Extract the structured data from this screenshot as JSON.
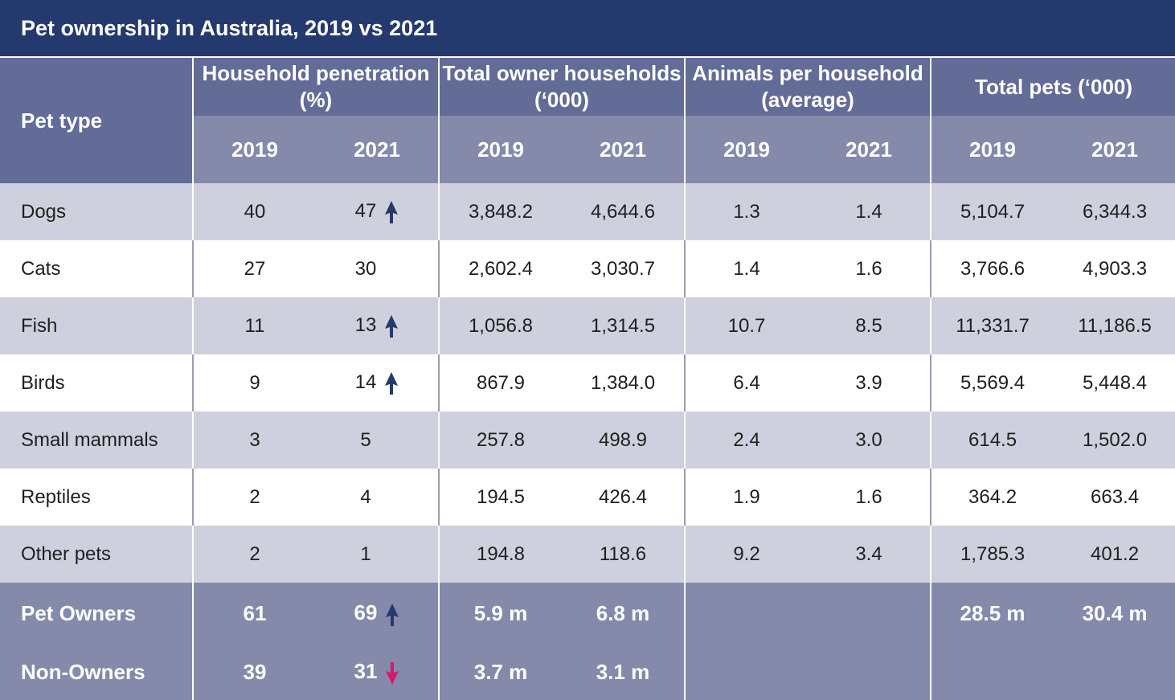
{
  "chart_data": {
    "type": "table",
    "title": "Pet ownership in Australia, 2019 vs 2021",
    "row_header": "Pet type",
    "groups": [
      {
        "label": "Household penetration (%)",
        "years": [
          "2019",
          "2021"
        ]
      },
      {
        "label": "Total owner households (‘000)",
        "years": [
          "2019",
          "2021"
        ]
      },
      {
        "label": "Animals per household (average)",
        "years": [
          "2019",
          "2021"
        ]
      },
      {
        "label": "Total pets (‘000)",
        "years": [
          "2019",
          "2021"
        ]
      }
    ],
    "rows": [
      {
        "pet": "Dogs",
        "pen19": "40",
        "pen21": "47",
        "trend": "up",
        "own19": "3,848.2",
        "own21": "4,644.6",
        "ani19": "1.3",
        "ani21": "1.4",
        "tot19": "5,104.7",
        "tot21": "6,344.3"
      },
      {
        "pet": "Cats",
        "pen19": "27",
        "pen21": "30",
        "trend": "",
        "own19": "2,602.4",
        "own21": "3,030.7",
        "ani19": "1.4",
        "ani21": "1.6",
        "tot19": "3,766.6",
        "tot21": "4,903.3"
      },
      {
        "pet": "Fish",
        "pen19": "11",
        "pen21": "13",
        "trend": "up",
        "own19": "1,056.8",
        "own21": "1,314.5",
        "ani19": "10.7",
        "ani21": "8.5",
        "tot19": "11,331.7",
        "tot21": "11,186.5"
      },
      {
        "pet": "Birds",
        "pen19": "9",
        "pen21": "14",
        "trend": "up",
        "own19": "867.9",
        "own21": "1,384.0",
        "ani19": "6.4",
        "ani21": "3.9",
        "tot19": "5,569.4",
        "tot21": "5,448.4"
      },
      {
        "pet": "Small mammals",
        "pen19": "3",
        "pen21": "5",
        "trend": "",
        "own19": "257.8",
        "own21": "498.9",
        "ani19": "2.4",
        "ani21": "3.0",
        "tot19": "614.5",
        "tot21": "1,502.0"
      },
      {
        "pet": "Reptiles",
        "pen19": "2",
        "pen21": "4",
        "trend": "",
        "own19": "194.5",
        "own21": "426.4",
        "ani19": "1.9",
        "ani21": "1.6",
        "tot19": "364.2",
        "tot21": "663.4"
      },
      {
        "pet": "Other pets",
        "pen19": "2",
        "pen21": "1",
        "trend": "",
        "own19": "194.8",
        "own21": "118.6",
        "ani19": "9.2",
        "ani21": "3.4",
        "tot19": "1,785.3",
        "tot21": "401.2"
      }
    ],
    "summary": [
      {
        "label": "Pet Owners",
        "pen19": "61",
        "pen21": "69",
        "trend": "up",
        "own19": "5.9 m",
        "own21": "6.8 m",
        "tot19": "28.5 m",
        "tot21": "30.4 m"
      },
      {
        "label": "Non-Owners",
        "pen19": "39",
        "pen21": "31",
        "trend": "down",
        "own19": "3.7 m",
        "own21": "3.1 m"
      }
    ],
    "colors": {
      "header_dark": "#243a6e",
      "up_arrow": "#243a6e",
      "down_arrow": "#d6176e"
    }
  }
}
